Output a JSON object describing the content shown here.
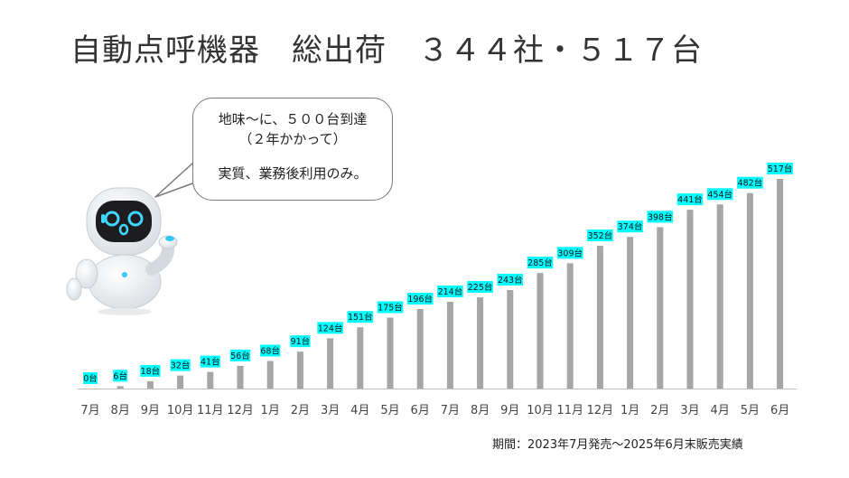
{
  "title": "自動点呼機器　総出荷　３４４社・５１７台",
  "bubble": {
    "line1": "地味〜に、５００台到達",
    "line2": "（２年かかって）",
    "line3": "実質、業務後利用のみ。"
  },
  "footnote": "期間：2023年7月発売〜2025年6月末販売実績",
  "colors": {
    "bar": "#a6a6a6",
    "label_bg": "#00ffff",
    "axis": "#bfbfbf"
  },
  "chart_data": {
    "type": "bar",
    "categories": [
      "7月",
      "8月",
      "9月",
      "10月",
      "11月",
      "12月",
      "1月",
      "2月",
      "3月",
      "4月",
      "5月",
      "6月",
      "7月",
      "8月",
      "9月",
      "10月",
      "11月",
      "12月",
      "1月",
      "2月",
      "3月",
      "4月",
      "5月",
      "6月"
    ],
    "values": [
      0,
      6,
      18,
      32,
      41,
      56,
      68,
      91,
      124,
      151,
      175,
      196,
      214,
      225,
      243,
      285,
      309,
      352,
      374,
      398,
      441,
      454,
      482,
      517
    ],
    "unit": "台",
    "ylim": [
      0,
      530
    ],
    "grid": false
  }
}
